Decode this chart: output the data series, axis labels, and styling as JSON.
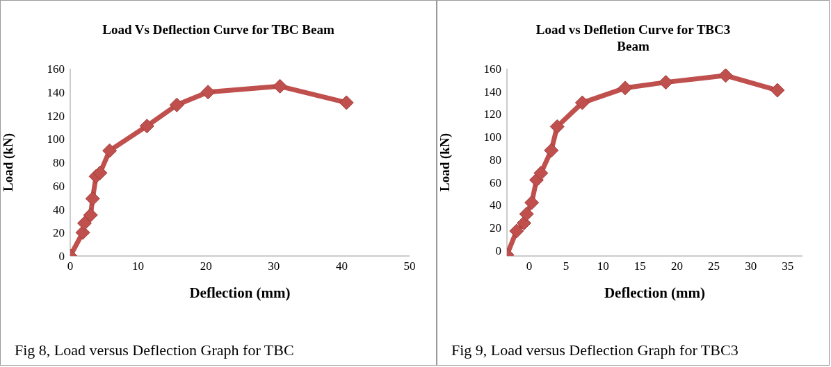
{
  "chart_data": [
    {
      "type": "line",
      "title": "Load Vs Deflection Curve for TBC Beam",
      "xlabel": "Deflection (mm)",
      "ylabel": "Load (kN)",
      "annotations": [
        "Fig 8, Load versus Deflection Graph for TBC"
      ],
      "xlim": [
        0,
        50
      ],
      "xticks": [
        0,
        10,
        20,
        30,
        40,
        50
      ],
      "ylim": [
        0,
        160
      ],
      "yticks": [
        0,
        20,
        40,
        60,
        80,
        100,
        120,
        140,
        160
      ],
      "marker": "diamond",
      "line_style": "solid",
      "series": [
        {
          "color": "#c0504d",
          "x": [
            0,
            1.85,
            2.1,
            3.0,
            3.3,
            3.8,
            4.4,
            5.8,
            11.3,
            15.7,
            20.3,
            30.9,
            40.7
          ],
          "values": [
            0,
            20,
            28,
            35,
            49,
            68,
            71,
            90,
            111,
            129,
            140,
            145,
            131
          ]
        }
      ]
    },
    {
      "type": "line",
      "title": "Load vs Defletion Curve for TBC3 Beam",
      "xlabel": "Deflection (mm)",
      "ylabel": "Load (kN)",
      "annotations": [
        "Fig 9, Load versus Deflection Graph for TBC3"
      ],
      "xlim": [
        -3,
        37
      ],
      "xticks": [
        0,
        5,
        10,
        15,
        20,
        25,
        30,
        35
      ],
      "ylim": [
        -5,
        160
      ],
      "yticks": [
        0,
        20,
        40,
        60,
        80,
        100,
        120,
        140,
        160
      ],
      "marker": "diamond",
      "line_style": "solid",
      "series": [
        {
          "color": "#c0504d",
          "x": [
            -3,
            -1.7,
            -0.7,
            -0.35,
            0.35,
            1.0,
            1.6,
            3.0,
            3.8,
            7.2,
            13,
            18.5,
            26.6,
            33.6
          ],
          "values": [
            -4,
            17,
            24,
            32,
            42,
            62,
            68,
            88,
            109,
            130,
            143,
            148,
            154,
            141
          ]
        }
      ]
    }
  ]
}
